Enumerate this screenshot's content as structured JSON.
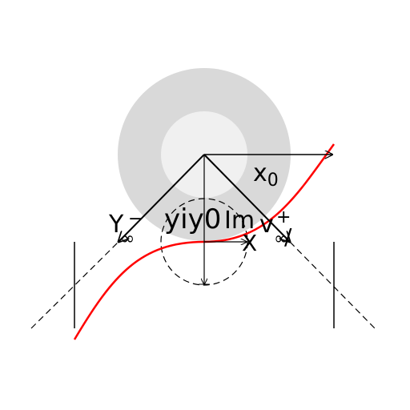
{
  "diagram": {
    "colors": {
      "background": "#ffffff",
      "outer_disk": "#d9d9d9",
      "inner_disk": "#f0f0f0",
      "curve": "#ff0000",
      "lines": "#000000"
    },
    "labels": {
      "x0_base": "x",
      "x0_sub": "0",
      "y_minus_base": "Y",
      "y_minus_sup": "−",
      "y_minus_sub": "∞",
      "center_text": "yiy0",
      "im": "Im",
      "v_plus_base": "v",
      "v_plus_sup": "+",
      "v_plus_sub": "∞",
      "x_label": "X"
    }
  }
}
